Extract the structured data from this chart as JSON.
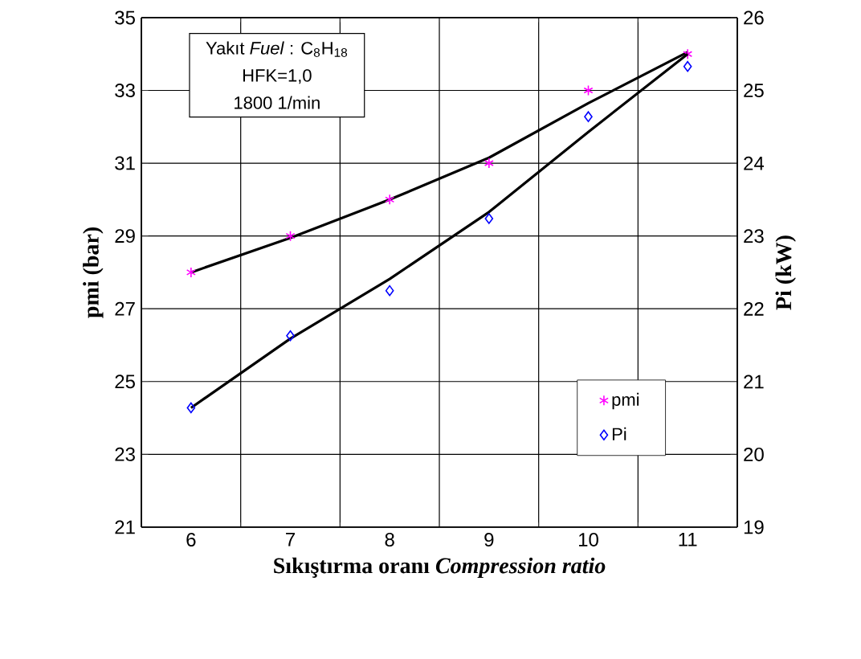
{
  "chart_data": {
    "type": "scatter",
    "xlabel": "Sıkıştırma oranı *Compression ratio*",
    "ylabel": "pmi (bar)",
    "y2label": "Pi (kW)",
    "categories": [
      "6",
      "7",
      "8",
      "9",
      "10",
      "11"
    ],
    "series": [
      {
        "name": "pmi",
        "type": "scatter",
        "color": "#ff00ff",
        "marker": "cross",
        "values": [
          28,
          29,
          30,
          31,
          33,
          34
        ]
      },
      {
        "name": "Pi",
        "type": "scatter",
        "axis": "y2",
        "color": "#0000ff",
        "marker": "diamond",
        "values": [
          20.64,
          21.63,
          22.25,
          23.24,
          24.64,
          25.33
        ]
      },
      {
        "type": "line",
        "color": "#000000",
        "marker": "none",
        "values": [
          28,
          28.95,
          30,
          31.15,
          32.65,
          34.05
        ]
      },
      {
        "type": "line",
        "axis": "y2",
        "color": "#000000",
        "marker": "none",
        "values": [
          20.64,
          21.59,
          22.41,
          23.33,
          24.43,
          25.5
        ]
      }
    ],
    "ylim": [
      21,
      35
    ],
    "yticks": [
      21,
      23,
      25,
      27,
      29,
      31,
      33,
      35
    ],
    "y2lim": [
      19,
      26
    ],
    "y2ticks": [
      19,
      20,
      21,
      22,
      23,
      24,
      25,
      26
    ],
    "grid": true,
    "legend": "bottom right",
    "annotations": [
      "Yakıt *Fuel* : C$_{8}$H$_{18}$",
      "HFK=1,0",
      "1800 1/min"
    ]
  }
}
